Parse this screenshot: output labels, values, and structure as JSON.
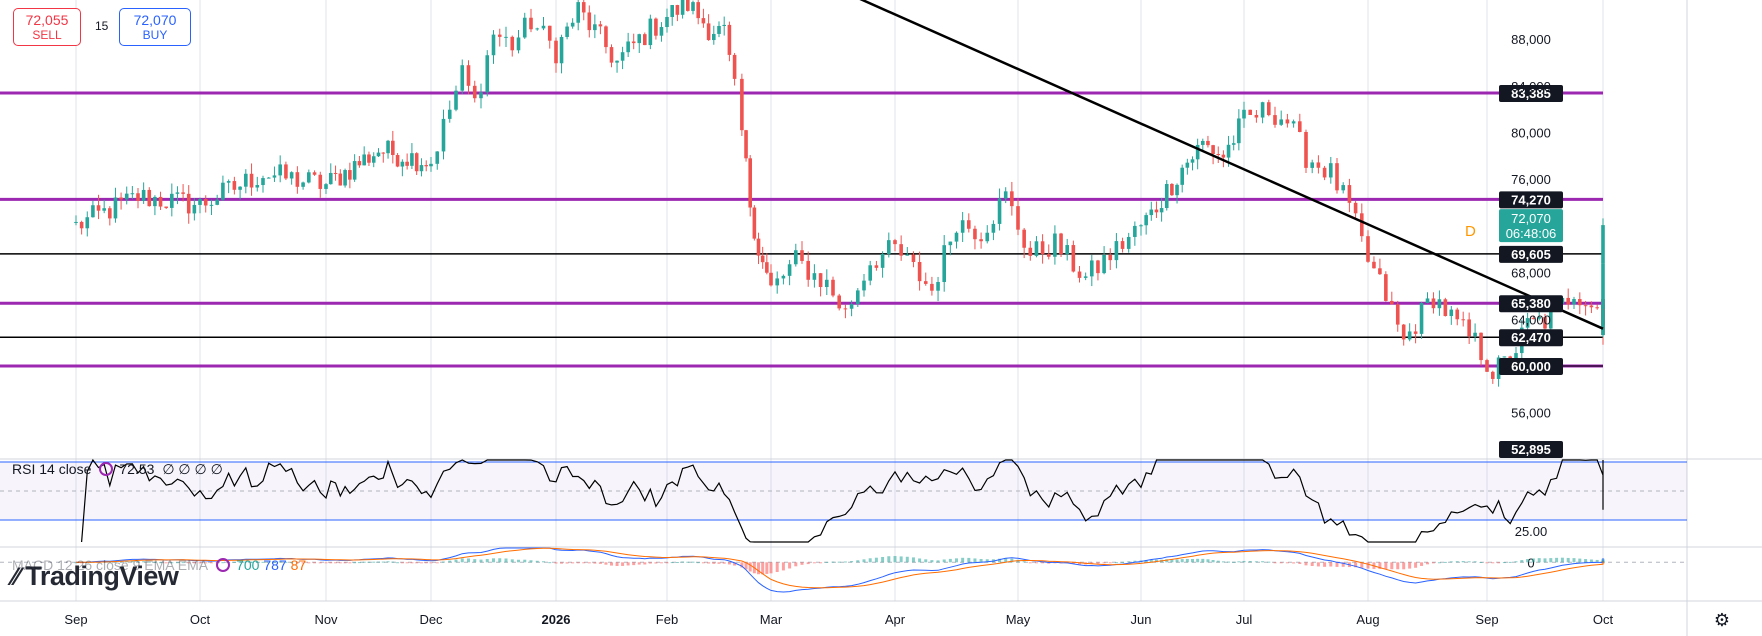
{
  "toolbar": {
    "sell_price": "72,055",
    "sell_label": "SELL",
    "spread": "15",
    "buy_price": "72,070",
    "buy_label": "BUY"
  },
  "colors": {
    "up": "#26a69a",
    "down": "#ef5350",
    "level_purple": "#9c27b0",
    "level_black": "#000000",
    "rsi_band": "#2962ff",
    "macd_line": "#2962ff",
    "signal_line": "#ff6d00"
  },
  "last_price": {
    "value": "72,070",
    "countdown": "06:48:06",
    "marker": "D"
  },
  "rsi_legend": {
    "label": "RSI 14 close",
    "value": "72.53",
    "extras": "∅ ∅ ∅ ∅"
  },
  "macd_legend": {
    "label": "MACD 12 26 close 9 EMA EMA",
    "v1": "700",
    "v2": "787",
    "v3": "87"
  },
  "logo": "TradingView",
  "chart_data": {
    "type": "candlestick",
    "x_ticks": [
      "Sep",
      "Oct",
      "Nov",
      "Dec",
      "2026",
      "Feb",
      "Mar",
      "Apr",
      "May",
      "Jun",
      "Jul",
      "Aug",
      "Sep",
      "Oct"
    ],
    "price_ticks": [
      "88,000",
      "84,000",
      "80,000",
      "76,000",
      "68,000",
      "64,000",
      "56,000"
    ],
    "ylim": [
      50000,
      91000
    ],
    "horizontal_levels": [
      {
        "value": 83385,
        "label": "83,385",
        "color": "purple",
        "until_month": 14.35
      },
      {
        "value": 74270,
        "label": "74,270",
        "color": "purple",
        "until_month": 14.35
      },
      {
        "value": 69605,
        "label": "69,605",
        "color": "black",
        "until_month": 14.35
      },
      {
        "value": 65380,
        "label": "65,380",
        "color": "purple",
        "until_month": 14.45
      },
      {
        "value": 62470,
        "label": "62,470",
        "color": "black",
        "until_month": 14.35
      },
      {
        "value": 60000,
        "label": "60,000",
        "color": "purple",
        "until_month": 13.15
      },
      {
        "value": 52895,
        "label": "52,895",
        "color": "none",
        "until_month": 0
      }
    ],
    "trendline": [
      {
        "month": 6.6,
        "price": 92000
      },
      {
        "month": 13.85,
        "price": 63200
      }
    ],
    "monthly_path": [
      [
        0,
        72000
      ],
      [
        0.5,
        74500
      ],
      [
        1,
        73800
      ],
      [
        1.5,
        76500
      ],
      [
        2,
        75500
      ],
      [
        2.5,
        78500
      ],
      [
        3,
        77500
      ],
      [
        3.25,
        85000
      ],
      [
        3.35,
        82500
      ],
      [
        3.5,
        88500
      ],
      [
        3.65,
        87500
      ],
      [
        3.8,
        89500
      ],
      [
        4.0,
        87000
      ],
      [
        4.2,
        90500
      ],
      [
        4.4,
        88000
      ],
      [
        4.55,
        86000
      ],
      [
        4.75,
        88000
      ],
      [
        5.0,
        90000
      ],
      [
        5.2,
        91000
      ],
      [
        5.4,
        89000
      ],
      [
        5.55,
        88500
      ],
      [
        5.65,
        83500
      ],
      [
        5.72,
        80000
      ],
      [
        5.8,
        74000
      ],
      [
        5.88,
        70000
      ],
      [
        6.0,
        66500
      ],
      [
        6.2,
        69000
      ],
      [
        6.45,
        67000
      ],
      [
        6.6,
        64500
      ],
      [
        6.8,
        69000
      ],
      [
        7.0,
        70000
      ],
      [
        7.3,
        66500
      ],
      [
        7.5,
        72500
      ],
      [
        7.7,
        71500
      ],
      [
        7.9,
        74500
      ],
      [
        8.1,
        69500
      ],
      [
        8.3,
        70500
      ],
      [
        8.55,
        67500
      ],
      [
        8.8,
        70000
      ],
      [
        9.1,
        73000
      ],
      [
        9.4,
        77000
      ],
      [
        9.6,
        79000
      ],
      [
        9.8,
        78000
      ],
      [
        10.0,
        81000
      ],
      [
        10.2,
        82000
      ],
      [
        10.35,
        81000
      ],
      [
        10.5,
        78000
      ],
      [
        10.7,
        76500
      ],
      [
        10.85,
        73500
      ],
      [
        11.0,
        69000
      ],
      [
        11.15,
        66000
      ],
      [
        11.3,
        62000
      ],
      [
        11.45,
        64500
      ],
      [
        11.55,
        66000
      ],
      [
        11.75,
        63500
      ],
      [
        11.9,
        62000
      ],
      [
        12.05,
        59500
      ],
      [
        12.2,
        60500
      ],
      [
        12.35,
        63500
      ],
      [
        12.55,
        64000
      ],
      [
        12.75,
        66500
      ],
      [
        12.95,
        65000
      ],
      [
        13.15,
        64000
      ],
      [
        13.35,
        65500
      ],
      [
        13.55,
        64000
      ],
      [
        13.62,
        63500
      ],
      [
        13.72,
        65000
      ],
      [
        13.78,
        68500
      ],
      [
        13.82,
        72070
      ]
    ],
    "rsi": {
      "range": [
        0,
        100
      ],
      "upper": 70,
      "middle": 50,
      "lower": 30,
      "last": 72.53,
      "labels": [
        "25.00"
      ]
    },
    "macd": {
      "zero_label": "0",
      "macd": 700,
      "signal": 787,
      "histogram": 87
    }
  }
}
